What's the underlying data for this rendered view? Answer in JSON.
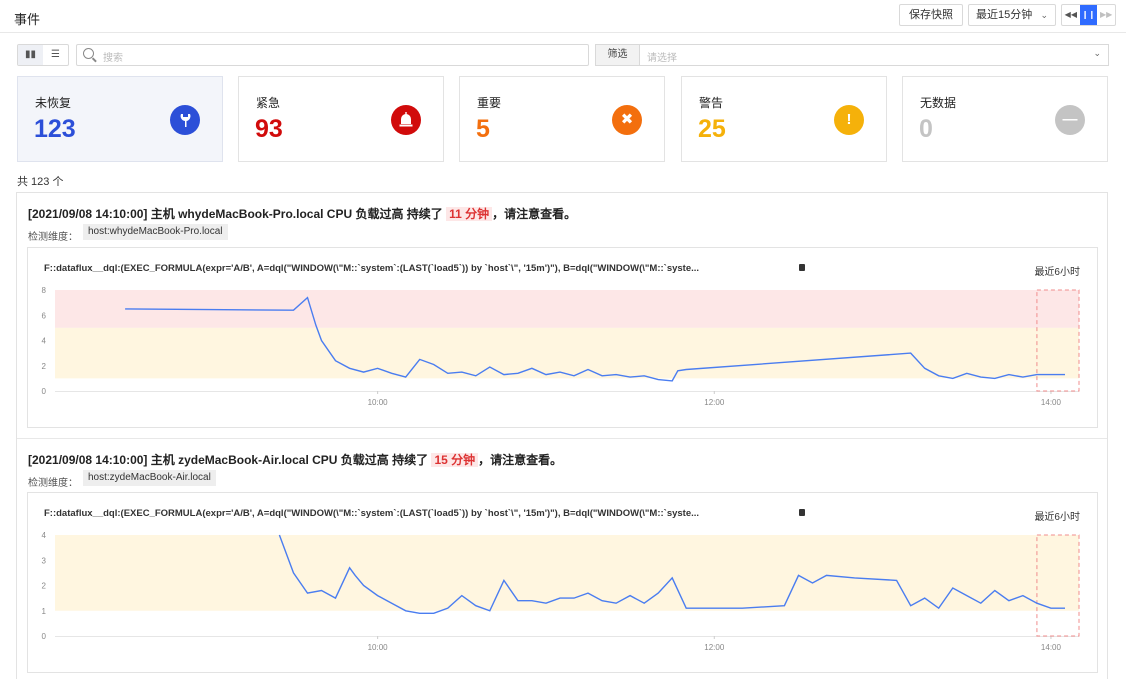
{
  "header": {
    "title": "事件",
    "save_snapshot": "保存快照",
    "time_range": "最近15分钟"
  },
  "toolbar": {
    "search_placeholder": "搜索",
    "filter_label": "筛选",
    "filter_placeholder": "请选择"
  },
  "stats": [
    {
      "label": "未恢复",
      "value": "123",
      "color": "#2c4fd8",
      "icon": "wrench-icon"
    },
    {
      "label": "紧急",
      "value": "93",
      "color": "#d10b0b",
      "icon": "alarm-icon"
    },
    {
      "label": "重要",
      "value": "5",
      "color": "#f36f0e",
      "icon": "close-icon"
    },
    {
      "label": "警告",
      "value": "25",
      "color": "#f5b10a",
      "icon": "exclamation-icon"
    },
    {
      "label": "无数据",
      "value": "0",
      "color": "#c4c4c4",
      "icon": "minus-icon"
    }
  ],
  "total": "共 123 个",
  "events": [
    {
      "title_pre": "[2021/09/08 14:10:00] 主机 whydeMacBook-Pro.local CPU 负载过高 持续了",
      "duration": "11 分钟",
      "title_post": "，请注意查看。",
      "dim_label": "检测维度：",
      "dim_value": "host:whydeMacBook-Pro.local",
      "query": "F::dataflux__dql:(EXEC_FORMULA(expr='A/B', A=dql(\"WINDOW(\\\"M::`system`:(LAST(`load5`)) by `host`\\\", '15m')\"), B=dql(\"WINDOW(\\\"M::`syste...",
      "range": "最近6小时"
    },
    {
      "title_pre": "[2021/09/08 14:10:00] 主机 zydeMacBook-Air.local CPU 负载过高 持续了",
      "duration": "15 分钟",
      "title_post": "，请注意查看。",
      "dim_label": "检测维度：",
      "dim_value": "host:zydeMacBook-Air.local",
      "query": "F::dataflux__dql:(EXEC_FORMULA(expr='A/B', A=dql(\"WINDOW(\\\"M::`system`:(LAST(`load5`)) by `host`\\\", '15m')\"), B=dql(\"WINDOW(\\\"M::`syste...",
      "range": "最近6小时"
    }
  ],
  "chart_data": [
    {
      "type": "line",
      "x_ticks": [
        "10:00",
        "12:00",
        "14:00"
      ],
      "x_range": [
        "08:05",
        "14:10"
      ],
      "y_ticks": [
        0,
        2,
        4,
        6,
        8
      ],
      "ylim": [
        0,
        8
      ],
      "bands": [
        {
          "from": 5,
          "to": 8,
          "color": "#fde7e7"
        },
        {
          "from": 1,
          "to": 5,
          "color": "#fff6e0"
        }
      ],
      "series": [
        {
          "color": "#4a7df0",
          "x": [
            "08:30",
            "09:00",
            "09:30",
            "09:35",
            "09:38",
            "09:40",
            "09:45",
            "09:50",
            "09:55",
            "10:00",
            "10:05",
            "10:10",
            "10:15",
            "10:20",
            "10:25",
            "10:30",
            "10:35",
            "10:40",
            "10:45",
            "10:50",
            "10:55",
            "11:00",
            "11:05",
            "11:10",
            "11:15",
            "11:20",
            "11:25",
            "11:30",
            "11:35",
            "11:40",
            "11:45",
            "11:47",
            "11:50",
            "13:10",
            "13:15",
            "13:20",
            "13:25",
            "13:30",
            "13:35",
            "13:40",
            "13:45",
            "13:50",
            "13:55",
            "14:00",
            "14:05"
          ],
          "y": [
            6.5,
            6.45,
            6.4,
            7.4,
            5.2,
            4.0,
            2.4,
            1.8,
            1.5,
            1.8,
            1.4,
            1.1,
            2.5,
            2.1,
            1.4,
            1.5,
            1.2,
            1.9,
            1.3,
            1.4,
            1.8,
            1.3,
            1.5,
            1.2,
            1.7,
            1.2,
            1.3,
            1.1,
            1.2,
            0.9,
            0.8,
            1.6,
            1.7,
            3.0,
            1.8,
            1.2,
            1.0,
            1.4,
            1.1,
            1.0,
            1.3,
            1.1,
            1.3,
            1.3,
            1.3
          ]
        }
      ]
    },
    {
      "type": "line",
      "x_ticks": [
        "10:00",
        "12:00",
        "14:00"
      ],
      "x_range": [
        "08:05",
        "14:10"
      ],
      "y_ticks": [
        0,
        1,
        2,
        3,
        4
      ],
      "ylim": [
        0,
        4
      ],
      "bands": [
        {
          "from": 1,
          "to": 4,
          "color": "#fff6e0"
        }
      ],
      "series": [
        {
          "color": "#4a7df0",
          "x": [
            "09:25",
            "09:30",
            "09:35",
            "09:40",
            "09:45",
            "09:50",
            "09:52",
            "09:55",
            "10:00",
            "10:05",
            "10:10",
            "10:15",
            "10:20",
            "10:25",
            "10:30",
            "10:35",
            "10:40",
            "10:45",
            "10:50",
            "10:55",
            "11:00",
            "11:05",
            "11:10",
            "11:15",
            "11:20",
            "11:25",
            "11:30",
            "11:35",
            "11:40",
            "11:45",
            "11:50",
            "12:00",
            "12:10",
            "12:25",
            "12:30",
            "12:35",
            "12:40",
            "12:50",
            "13:05",
            "13:10",
            "13:15",
            "13:20",
            "13:25",
            "13:30",
            "13:35",
            "13:40",
            "13:45",
            "13:50",
            "13:55",
            "14:00",
            "14:05"
          ],
          "y": [
            4.0,
            2.5,
            1.7,
            1.8,
            1.5,
            2.7,
            2.4,
            2.0,
            1.6,
            1.3,
            1.0,
            0.9,
            0.9,
            1.1,
            1.6,
            1.2,
            1.0,
            2.2,
            1.4,
            1.4,
            1.3,
            1.5,
            1.5,
            1.7,
            1.4,
            1.3,
            1.6,
            1.3,
            1.7,
            2.3,
            1.1,
            1.1,
            1.1,
            1.2,
            2.4,
            2.1,
            2.4,
            2.3,
            2.2,
            1.2,
            1.5,
            1.1,
            1.9,
            1.6,
            1.3,
            1.8,
            1.4,
            1.6,
            1.3,
            1.1,
            1.1
          ]
        }
      ]
    }
  ]
}
